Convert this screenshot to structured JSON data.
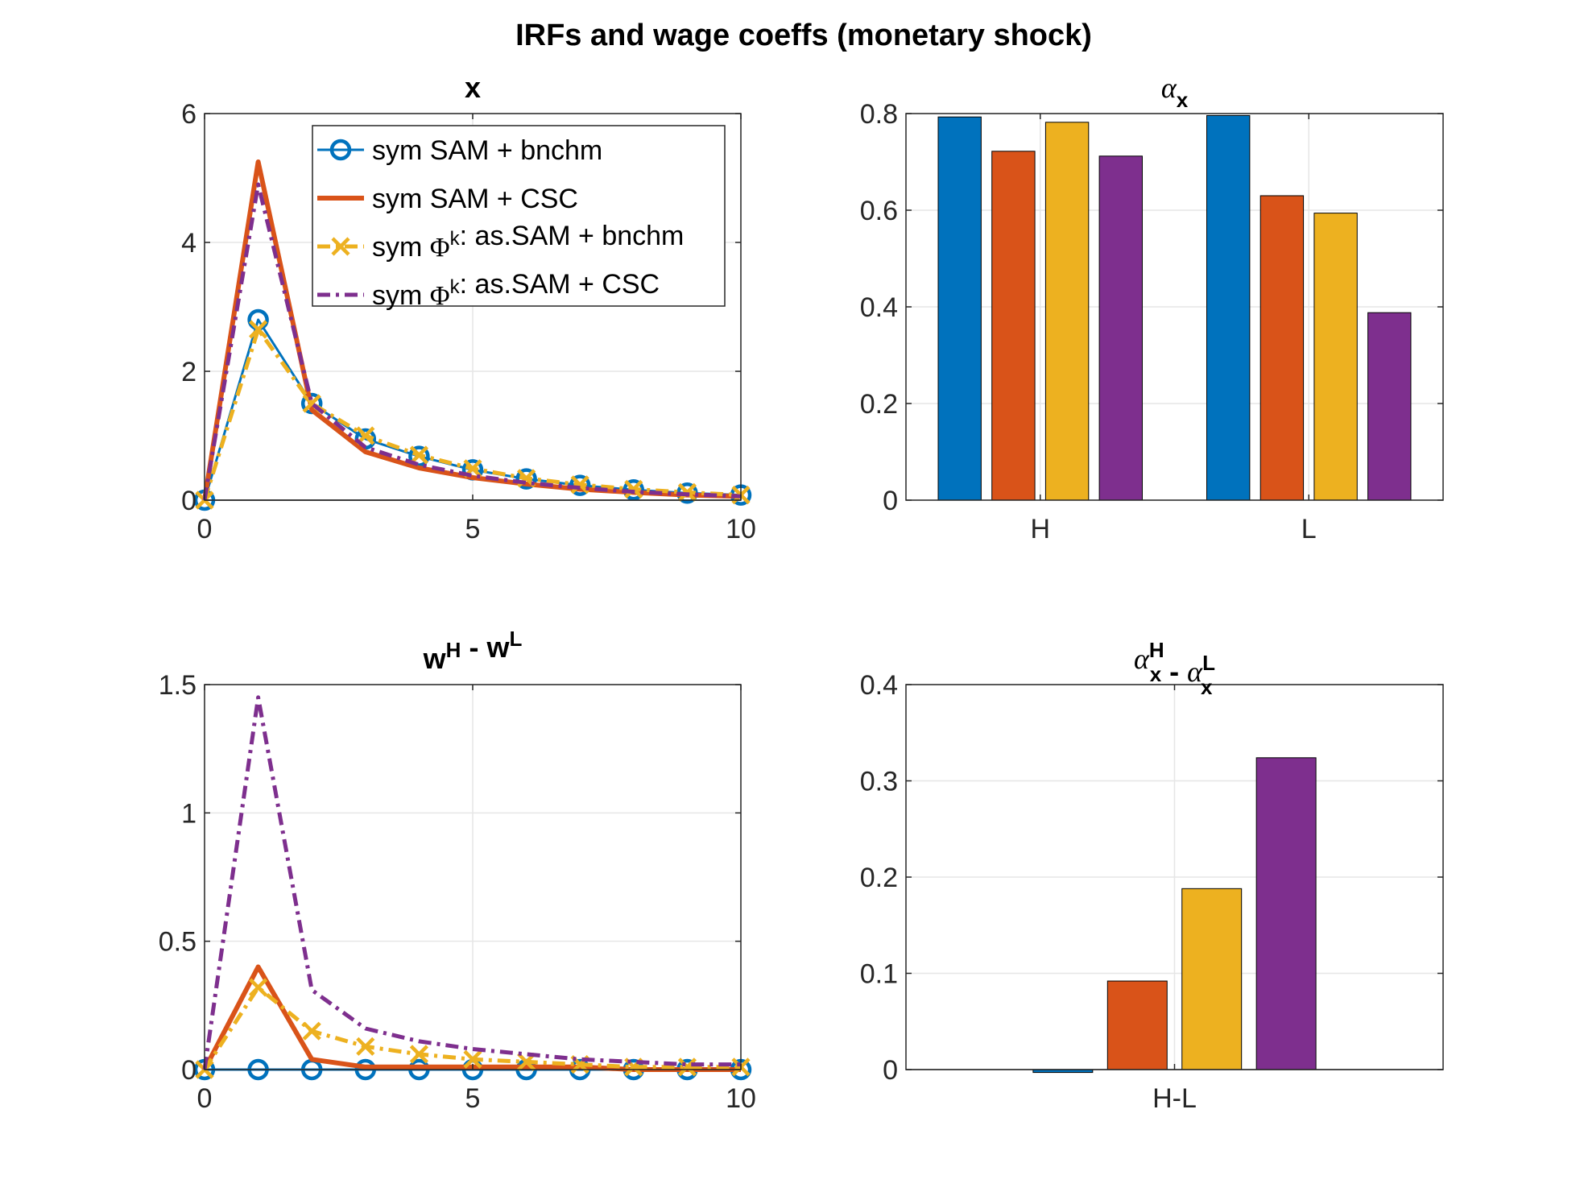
{
  "figure": {
    "title": "IRFs and wage coeffs (monetary shock)"
  },
  "colors": {
    "blue": "#0072BD",
    "orange": "#D95319",
    "yellow": "#EDB120",
    "purple": "#7E2F8E",
    "grid": "#e6e6e6",
    "axis": "#262626"
  },
  "chart_data": [
    {
      "id": "x",
      "type": "line",
      "title": "x",
      "x": [
        0,
        1,
        2,
        3,
        4,
        5,
        6,
        7,
        8,
        9,
        10
      ],
      "xlim": [
        0,
        10
      ],
      "ylim": [
        0,
        6
      ],
      "xticks": [
        0,
        5,
        10
      ],
      "xtick_labels": [
        "0",
        "5",
        "10"
      ],
      "yticks": [
        0,
        2,
        4,
        6
      ],
      "ytick_labels": [
        "0",
        "2",
        "4",
        "6"
      ],
      "grid": true,
      "zero_line": true,
      "legend": {
        "placement": "top-right",
        "entries": [
          {
            "text": "sym SAM + bnchm",
            "parts": [
              {
                "t": "sym SAM + bnchm"
              }
            ]
          },
          {
            "text": "sym SAM + CSC",
            "parts": [
              {
                "t": "sym SAM + CSC"
              }
            ]
          },
          {
            "text": "sym Φk: as.SAM + bnchm",
            "parts": [
              {
                "t": "sym "
              },
              {
                "t": "Φ",
                "greek": true
              },
              {
                "t": "k",
                "sup": true
              },
              {
                "t": ": as.SAM + bnchm"
              }
            ]
          },
          {
            "text": "sym Φk: as.SAM + CSC",
            "parts": [
              {
                "t": "sym "
              },
              {
                "t": "Φ",
                "greek": true
              },
              {
                "t": "k",
                "sup": true
              },
              {
                "t": ": as.SAM + CSC"
              }
            ]
          }
        ]
      },
      "series": [
        {
          "name": "sym SAM + bnchm",
          "color": "blue",
          "style": "solid-circle",
          "values": [
            0,
            2.8,
            1.5,
            0.95,
            0.68,
            0.47,
            0.33,
            0.23,
            0.16,
            0.11,
            0.08
          ]
        },
        {
          "name": "sym SAM + CSC",
          "color": "orange",
          "style": "solid-thick",
          "values": [
            0,
            5.25,
            1.4,
            0.75,
            0.5,
            0.35,
            0.25,
            0.17,
            0.12,
            0.08,
            0.06
          ]
        },
        {
          "name": "sym Φk: as.SAM + bnchm",
          "color": "yellow",
          "style": "dashdot-x",
          "values": [
            0,
            2.65,
            1.5,
            1.0,
            0.7,
            0.49,
            0.34,
            0.24,
            0.17,
            0.12,
            0.08
          ]
        },
        {
          "name": "sym Φk: as.SAM + CSC",
          "color": "purple",
          "style": "dashdot",
          "values": [
            0,
            4.9,
            1.5,
            0.82,
            0.55,
            0.38,
            0.27,
            0.19,
            0.13,
            0.09,
            0.06
          ]
        }
      ]
    },
    {
      "id": "alpha_x",
      "type": "bar",
      "title": "α_x",
      "title_parts": [
        {
          "t": "α",
          "greek": true
        },
        {
          "t": "x",
          "sub": true
        }
      ],
      "categories": [
        "H",
        "L"
      ],
      "ylim": [
        0,
        0.8
      ],
      "yticks": [
        0,
        0.2,
        0.4,
        0.6,
        0.8
      ],
      "ytick_labels": [
        "0",
        "0.2",
        "0.4",
        "0.6",
        "0.8"
      ],
      "grid": true,
      "series_colors": [
        "blue",
        "orange",
        "yellow",
        "purple"
      ],
      "values": [
        [
          0.793,
          0.722,
          0.782,
          0.712
        ],
        [
          0.796,
          0.63,
          0.594,
          0.388
        ]
      ]
    },
    {
      "id": "w_diff",
      "type": "line",
      "title": "w^H - w^L",
      "title_parts": [
        {
          "t": "w"
        },
        {
          "t": "H",
          "sup": true
        },
        {
          "t": " - w"
        },
        {
          "t": "L",
          "sup": true
        }
      ],
      "x": [
        0,
        1,
        2,
        3,
        4,
        5,
        6,
        7,
        8,
        9,
        10
      ],
      "xlim": [
        0,
        10
      ],
      "ylim": [
        0,
        1.5
      ],
      "xticks": [
        0,
        5,
        10
      ],
      "xtick_labels": [
        "0",
        "5",
        "10"
      ],
      "yticks": [
        0,
        0.5,
        1,
        1.5
      ],
      "ytick_labels": [
        "0",
        "0.5",
        "1",
        "1.5"
      ],
      "grid": true,
      "zero_line": true,
      "series": [
        {
          "name": "sym SAM + bnchm",
          "color": "blue",
          "style": "solid-circle",
          "values": [
            0,
            0,
            0,
            0,
            0,
            0,
            0,
            0,
            0,
            0,
            0
          ]
        },
        {
          "name": "sym SAM + CSC",
          "color": "orange",
          "style": "solid-thick",
          "values": [
            0,
            0.4,
            0.04,
            0.01,
            0.01,
            0.01,
            0.01,
            0.01,
            0.0,
            0.0,
            0.0
          ]
        },
        {
          "name": "sym Φk: as.SAM + bnchm",
          "color": "yellow",
          "style": "dashdot-x",
          "values": [
            0,
            0.32,
            0.15,
            0.09,
            0.06,
            0.04,
            0.03,
            0.02,
            0.01,
            0.01,
            0.01
          ]
        },
        {
          "name": "sym Φk: as.SAM + CSC",
          "color": "purple",
          "style": "dashdot",
          "values": [
            0,
            1.45,
            0.31,
            0.16,
            0.11,
            0.08,
            0.06,
            0.04,
            0.03,
            0.02,
            0.02
          ]
        }
      ]
    },
    {
      "id": "alpha_diff",
      "type": "bar",
      "title": "α_x^H - α_x^L",
      "title_parts": [
        {
          "t": "α",
          "greek": true
        },
        {
          "t": "x",
          "subsup": "H"
        },
        {
          "t": " - "
        },
        {
          "t": "α",
          "greek": true
        },
        {
          "t": "x",
          "subsup": "L"
        }
      ],
      "categories": [
        "H-L"
      ],
      "ylim": [
        0,
        0.4
      ],
      "yticks": [
        0,
        0.1,
        0.2,
        0.3,
        0.4
      ],
      "ytick_labels": [
        "0",
        "0.1",
        "0.2",
        "0.3",
        "0.4"
      ],
      "grid": true,
      "series_colors": [
        "blue",
        "orange",
        "yellow",
        "purple"
      ],
      "values": [
        [
          -0.003,
          0.092,
          0.188,
          0.324
        ]
      ]
    }
  ]
}
